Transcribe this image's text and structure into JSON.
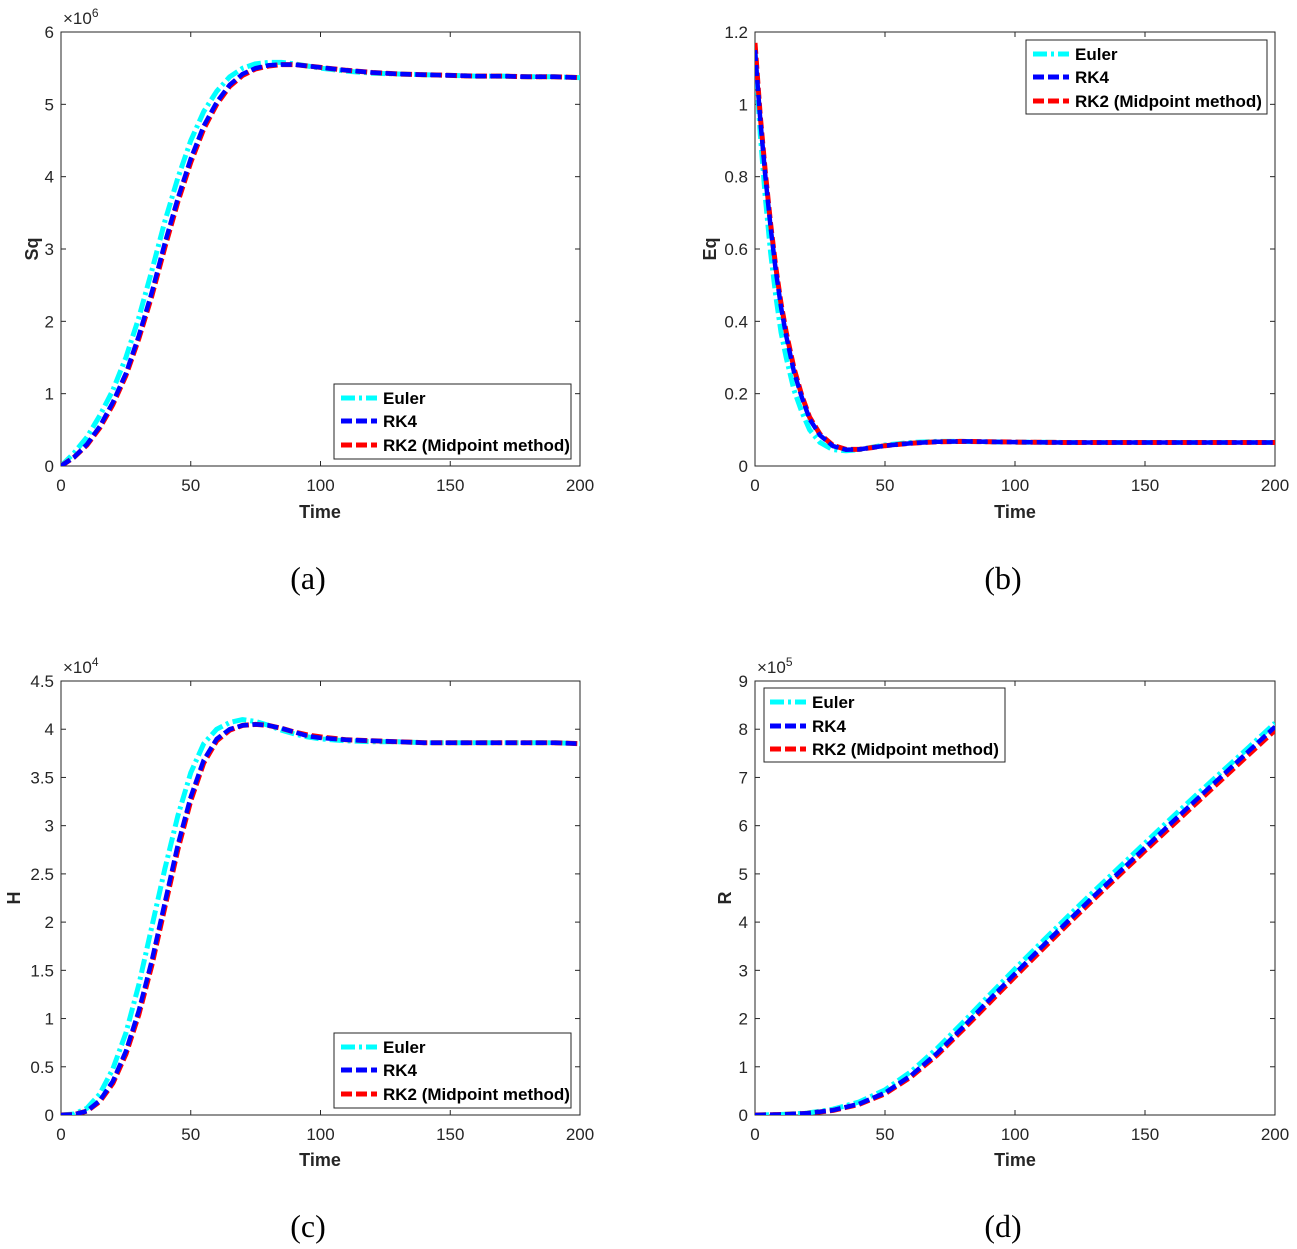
{
  "colors": {
    "euler": "#00ffff",
    "rk4": "#0000ff",
    "rk2": "#ff0000",
    "axis": "#262626"
  },
  "chart_data": [
    {
      "type": "line",
      "panel": "a",
      "caption": "(a)",
      "xlabel": "Time",
      "ylabel": "Sq",
      "xlim": [
        0,
        200
      ],
      "ylim": [
        0,
        6
      ],
      "xticks": [
        "0",
        "50",
        "100",
        "150",
        "200"
      ],
      "yticks": [
        "0",
        "1",
        "2",
        "3",
        "4",
        "5",
        "6"
      ],
      "exponent": {
        "base": "×10",
        "power": "6"
      },
      "legend_position": "bottom-right",
      "x": [
        0,
        5,
        10,
        15,
        20,
        25,
        30,
        35,
        40,
        45,
        50,
        55,
        60,
        65,
        70,
        75,
        80,
        85,
        90,
        95,
        100,
        110,
        120,
        130,
        140,
        150,
        160,
        170,
        180,
        190,
        200
      ],
      "series": [
        {
          "name": "Euler",
          "values": [
            0.0,
            0.18,
            0.4,
            0.7,
            1.05,
            1.5,
            2.05,
            2.7,
            3.38,
            3.98,
            4.5,
            4.9,
            5.18,
            5.38,
            5.5,
            5.56,
            5.58,
            5.58,
            5.56,
            5.53,
            5.5,
            5.46,
            5.43,
            5.42,
            5.41,
            5.4,
            5.39,
            5.39,
            5.38,
            5.38,
            5.37
          ]
        },
        {
          "name": "RK4",
          "values": [
            0.0,
            0.12,
            0.3,
            0.55,
            0.88,
            1.28,
            1.8,
            2.4,
            3.08,
            3.7,
            4.25,
            4.7,
            5.03,
            5.27,
            5.42,
            5.5,
            5.54,
            5.55,
            5.55,
            5.53,
            5.51,
            5.47,
            5.44,
            5.42,
            5.41,
            5.4,
            5.39,
            5.39,
            5.38,
            5.38,
            5.37
          ]
        },
        {
          "name": "RK2 (Midpoint method)",
          "values": [
            0.0,
            0.12,
            0.29,
            0.53,
            0.85,
            1.25,
            1.76,
            2.35,
            3.02,
            3.65,
            4.2,
            4.66,
            5.0,
            5.25,
            5.4,
            5.49,
            5.53,
            5.55,
            5.55,
            5.53,
            5.51,
            5.47,
            5.44,
            5.42,
            5.41,
            5.4,
            5.39,
            5.39,
            5.38,
            5.38,
            5.37
          ]
        }
      ]
    },
    {
      "type": "line",
      "panel": "b",
      "caption": "(b)",
      "xlabel": "Time",
      "ylabel": "Eq",
      "xlim": [
        0,
        200
      ],
      "ylim": [
        0,
        1.2
      ],
      "xticks": [
        "0",
        "50",
        "100",
        "150",
        "200"
      ],
      "yticks": [
        "0",
        "0.2",
        "0.4",
        "0.6",
        "0.8",
        "1",
        "1.2"
      ],
      "legend_position": "top-right",
      "x": [
        0,
        2,
        4,
        6,
        8,
        10,
        12,
        15,
        18,
        21,
        25,
        30,
        35,
        40,
        45,
        50,
        60,
        70,
        80,
        90,
        100,
        120,
        140,
        160,
        180,
        200
      ],
      "series": [
        {
          "name": "Euler",
          "values": [
            1.15,
            0.92,
            0.74,
            0.59,
            0.47,
            0.37,
            0.3,
            0.21,
            0.15,
            0.1,
            0.065,
            0.045,
            0.042,
            0.045,
            0.052,
            0.058,
            0.065,
            0.068,
            0.068,
            0.067,
            0.066,
            0.065,
            0.065,
            0.065,
            0.065,
            0.065
          ]
        },
        {
          "name": "RK4",
          "values": [
            1.15,
            0.96,
            0.8,
            0.66,
            0.54,
            0.44,
            0.36,
            0.26,
            0.19,
            0.13,
            0.085,
            0.055,
            0.045,
            0.046,
            0.051,
            0.056,
            0.063,
            0.067,
            0.068,
            0.067,
            0.066,
            0.065,
            0.065,
            0.065,
            0.065,
            0.065
          ]
        },
        {
          "name": "RK2 (Midpoint method)",
          "values": [
            1.17,
            0.97,
            0.81,
            0.67,
            0.55,
            0.45,
            0.37,
            0.27,
            0.195,
            0.135,
            0.088,
            0.057,
            0.046,
            0.046,
            0.051,
            0.056,
            0.063,
            0.067,
            0.068,
            0.067,
            0.066,
            0.065,
            0.065,
            0.065,
            0.065,
            0.065
          ]
        }
      ]
    },
    {
      "type": "line",
      "panel": "c",
      "caption": "(c)",
      "xlabel": "Time",
      "ylabel": "H",
      "xlim": [
        0,
        200
      ],
      "ylim": [
        0,
        4.5
      ],
      "xticks": [
        "0",
        "50",
        "100",
        "150",
        "200"
      ],
      "yticks": [
        "0",
        "0.5",
        "1",
        "1.5",
        "2",
        "2.5",
        "3",
        "3.5",
        "4",
        "4.5"
      ],
      "exponent": {
        "base": "×10",
        "power": "4"
      },
      "legend_position": "bottom-right",
      "x": [
        0,
        5,
        10,
        15,
        20,
        25,
        30,
        35,
        40,
        45,
        50,
        55,
        60,
        65,
        70,
        75,
        80,
        85,
        90,
        95,
        100,
        110,
        120,
        130,
        140,
        150,
        160,
        170,
        180,
        190,
        200
      ],
      "series": [
        {
          "name": "Euler",
          "values": [
            0.0,
            0.01,
            0.07,
            0.22,
            0.48,
            0.85,
            1.35,
            1.95,
            2.55,
            3.1,
            3.55,
            3.85,
            4.0,
            4.07,
            4.1,
            4.08,
            4.04,
            3.99,
            3.95,
            3.92,
            3.9,
            3.88,
            3.87,
            3.87,
            3.86,
            3.86,
            3.86,
            3.86,
            3.86,
            3.86,
            3.85
          ]
        },
        {
          "name": "RK4",
          "values": [
            0.0,
            0.005,
            0.04,
            0.15,
            0.35,
            0.66,
            1.08,
            1.6,
            2.2,
            2.8,
            3.3,
            3.68,
            3.9,
            4.0,
            4.04,
            4.05,
            4.04,
            4.01,
            3.97,
            3.93,
            3.91,
            3.89,
            3.88,
            3.87,
            3.86,
            3.86,
            3.86,
            3.86,
            3.86,
            3.86,
            3.85
          ]
        },
        {
          "name": "RK2 (Midpoint method)",
          "values": [
            0.0,
            0.005,
            0.04,
            0.14,
            0.33,
            0.63,
            1.04,
            1.55,
            2.15,
            2.75,
            3.26,
            3.65,
            3.88,
            3.99,
            4.04,
            4.05,
            4.04,
            4.01,
            3.97,
            3.94,
            3.92,
            3.89,
            3.88,
            3.87,
            3.86,
            3.86,
            3.86,
            3.86,
            3.86,
            3.86,
            3.85
          ]
        }
      ]
    },
    {
      "type": "line",
      "panel": "d",
      "caption": "(d)",
      "xlabel": "Time",
      "ylabel": "R",
      "xlim": [
        0,
        200
      ],
      "ylim": [
        0,
        9
      ],
      "xticks": [
        "0",
        "50",
        "100",
        "150",
        "200"
      ],
      "yticks": [
        "0",
        "1",
        "2",
        "3",
        "4",
        "5",
        "6",
        "7",
        "8",
        "9"
      ],
      "exponent": {
        "base": "×10",
        "power": "5"
      },
      "legend_position": "top-left",
      "x": [
        0,
        10,
        20,
        30,
        40,
        50,
        60,
        70,
        80,
        90,
        100,
        110,
        120,
        130,
        140,
        150,
        160,
        170,
        180,
        190,
        200
      ],
      "series": [
        {
          "name": "Euler",
          "values": [
            0.0,
            0.01,
            0.04,
            0.12,
            0.27,
            0.52,
            0.9,
            1.38,
            1.92,
            2.48,
            3.03,
            3.57,
            4.1,
            4.62,
            5.13,
            5.64,
            6.15,
            6.65,
            7.14,
            7.63,
            8.13
          ]
        },
        {
          "name": "RK4",
          "values": [
            0.0,
            0.01,
            0.035,
            0.1,
            0.23,
            0.46,
            0.82,
            1.28,
            1.82,
            2.38,
            2.93,
            3.47,
            4.0,
            4.52,
            5.03,
            5.54,
            6.05,
            6.55,
            7.05,
            7.55,
            8.05
          ]
        },
        {
          "name": "RK2 (Midpoint method)",
          "values": [
            0.0,
            0.01,
            0.033,
            0.095,
            0.22,
            0.44,
            0.79,
            1.24,
            1.77,
            2.32,
            2.87,
            3.41,
            3.94,
            4.46,
            4.97,
            5.48,
            5.98,
            6.48,
            6.98,
            7.48,
            7.98
          ]
        }
      ]
    }
  ]
}
